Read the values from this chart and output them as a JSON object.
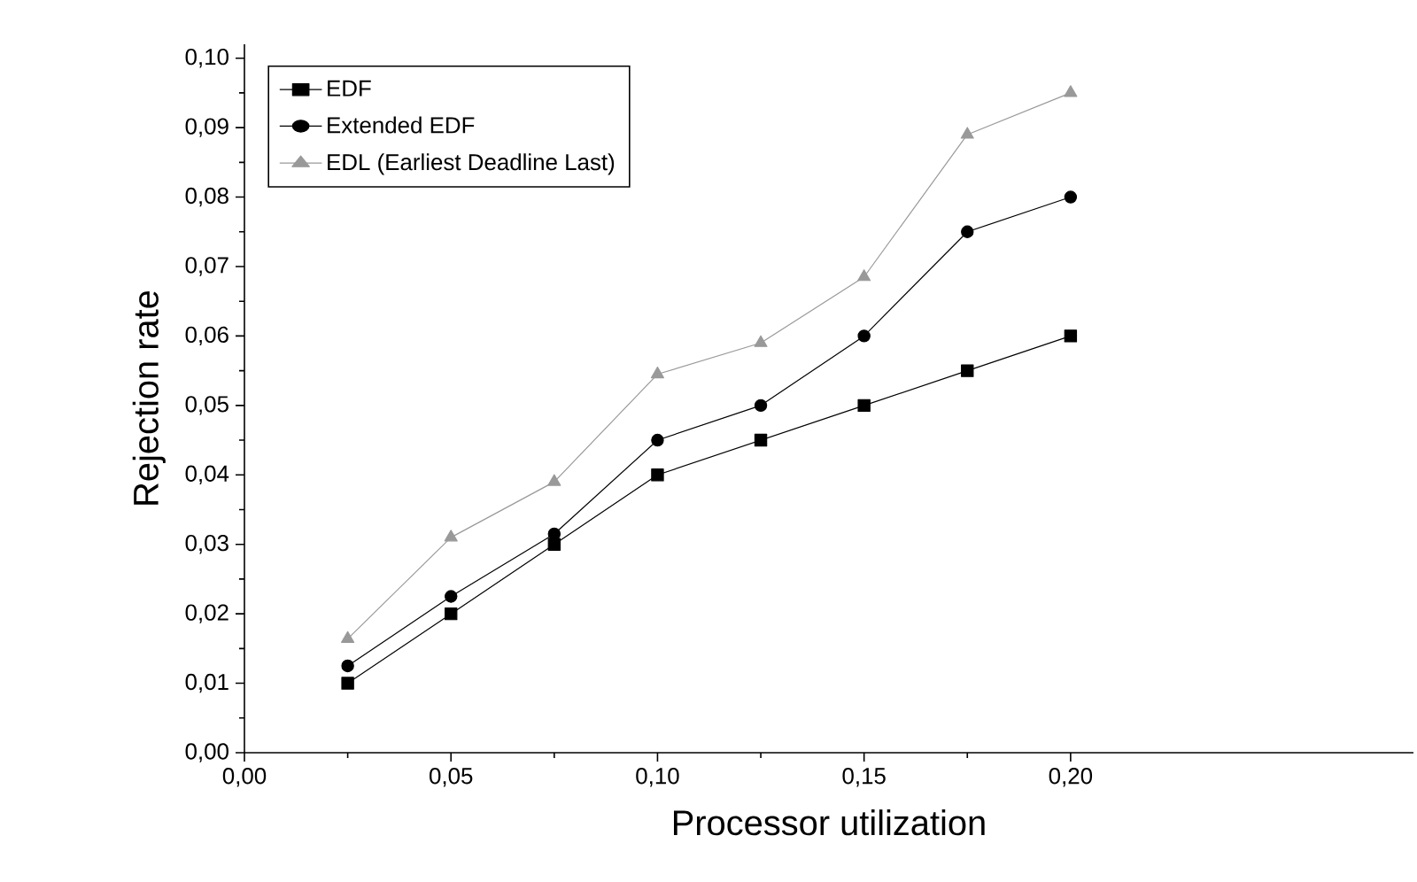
{
  "chart_data": {
    "type": "line",
    "xlabel": "Processor utilization",
    "ylabel": "Rejection rate",
    "x": [
      0.025,
      0.05,
      0.075,
      0.1,
      0.125,
      0.15,
      0.175,
      0.2
    ],
    "series": [
      {
        "name": "EDF",
        "color": "#000000",
        "marker": "square",
        "values": [
          0.01,
          0.02,
          0.03,
          0.04,
          0.045,
          0.05,
          0.055,
          0.06
        ]
      },
      {
        "name": "Extended EDF",
        "color": "#000000",
        "marker": "circle",
        "values": [
          0.0125,
          0.0225,
          0.0315,
          0.045,
          0.05,
          0.06,
          0.075,
          0.08
        ]
      },
      {
        "name": "EDL (Earliest Deadline Last)",
        "color": "#999999",
        "marker": "triangle",
        "values": [
          0.0164,
          0.031,
          0.039,
          0.0545,
          0.059,
          0.0685,
          0.089,
          0.095
        ]
      }
    ],
    "xlim": [
      0,
      0.283
    ],
    "ylim": [
      0,
      0.102
    ],
    "xticks": [
      {
        "value": 0,
        "label": "0,00"
      },
      {
        "value": 0.05,
        "label": "0,05"
      },
      {
        "value": 0.1,
        "label": "0,10"
      },
      {
        "value": 0.15,
        "label": "0,15"
      },
      {
        "value": 0.2,
        "label": "0,20"
      }
    ],
    "yticks": [
      {
        "value": 0,
        "label": "0,00"
      },
      {
        "value": 0.01,
        "label": "0,01"
      },
      {
        "value": 0.02,
        "label": "0,02"
      },
      {
        "value": 0.03,
        "label": "0,03"
      },
      {
        "value": 0.04,
        "label": "0,04"
      },
      {
        "value": 0.05,
        "label": "0,05"
      },
      {
        "value": 0.06,
        "label": "0,06"
      },
      {
        "value": 0.07,
        "label": "0,07"
      },
      {
        "value": 0.08,
        "label": "0,08"
      },
      {
        "value": 0.09,
        "label": "0,09"
      },
      {
        "value": 0.1,
        "label": "0,10"
      }
    ],
    "grid": false,
    "legend": "top left",
    "line_style": "solid"
  }
}
